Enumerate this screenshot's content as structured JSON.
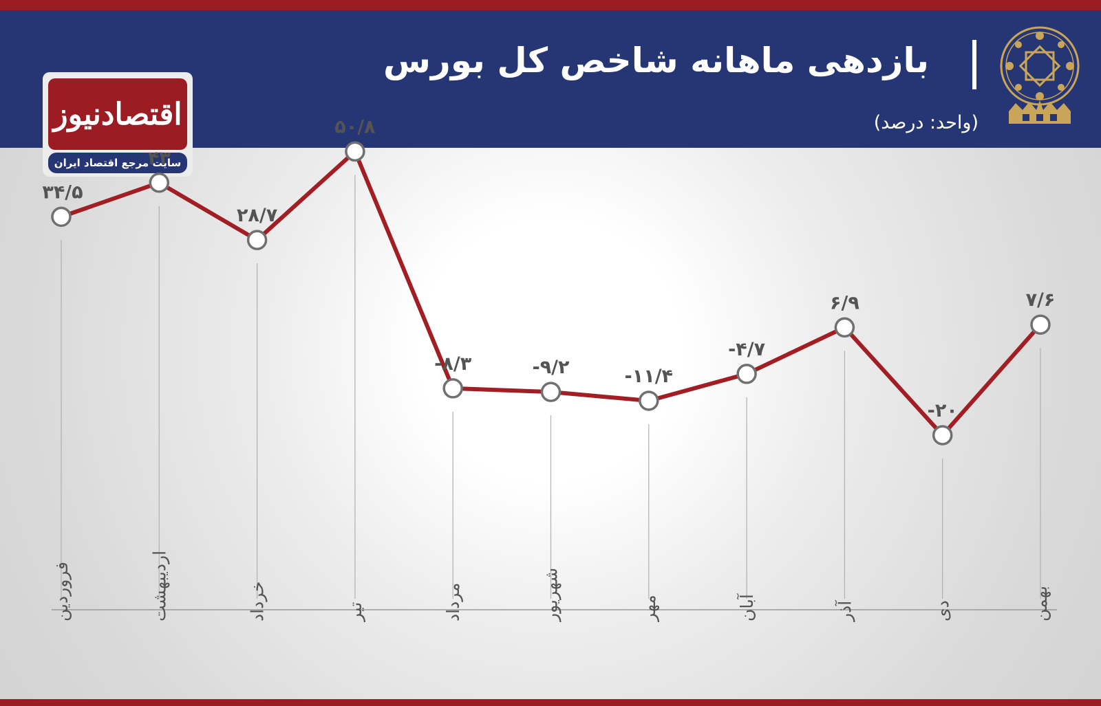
{
  "header": {
    "title": "بازدهی ماهانه شاخص کل بورس",
    "unit": "(واحد: درصد)"
  },
  "brand": {
    "name": "اقتصادنیوز",
    "tagline": "سایت مرجع اقتصاد ایران"
  },
  "colors": {
    "header_bg": "#263674",
    "accent_red": "#9b1c22",
    "line": "#a11f24",
    "marker_stroke": "#707070"
  },
  "chart_data": {
    "type": "line",
    "title": "بازدهی ماهانه شاخص کل بورس",
    "ylabel": "(واحد: درصد)",
    "xlabel": "",
    "grid": false,
    "categories": [
      "فروردین",
      "اردیبهشت",
      "خرداد",
      "تیر",
      "مرداد",
      "شهریور",
      "مهر",
      "آبان",
      "آذر",
      "دی",
      "بهمن"
    ],
    "values": [
      34.5,
      43,
      28.7,
      50.8,
      -8.3,
      -9.2,
      -11.4,
      -4.7,
      6.9,
      -20,
      7.6
    ],
    "value_labels": [
      "۳۴/۵",
      "۴۳",
      "۲۸/۷",
      "۵۰/۸",
      "-۸/۳",
      "-۹/۲",
      "-۱۱/۴",
      "-۴/۷",
      "۶/۹",
      "-۲۰",
      "۷/۶"
    ]
  }
}
